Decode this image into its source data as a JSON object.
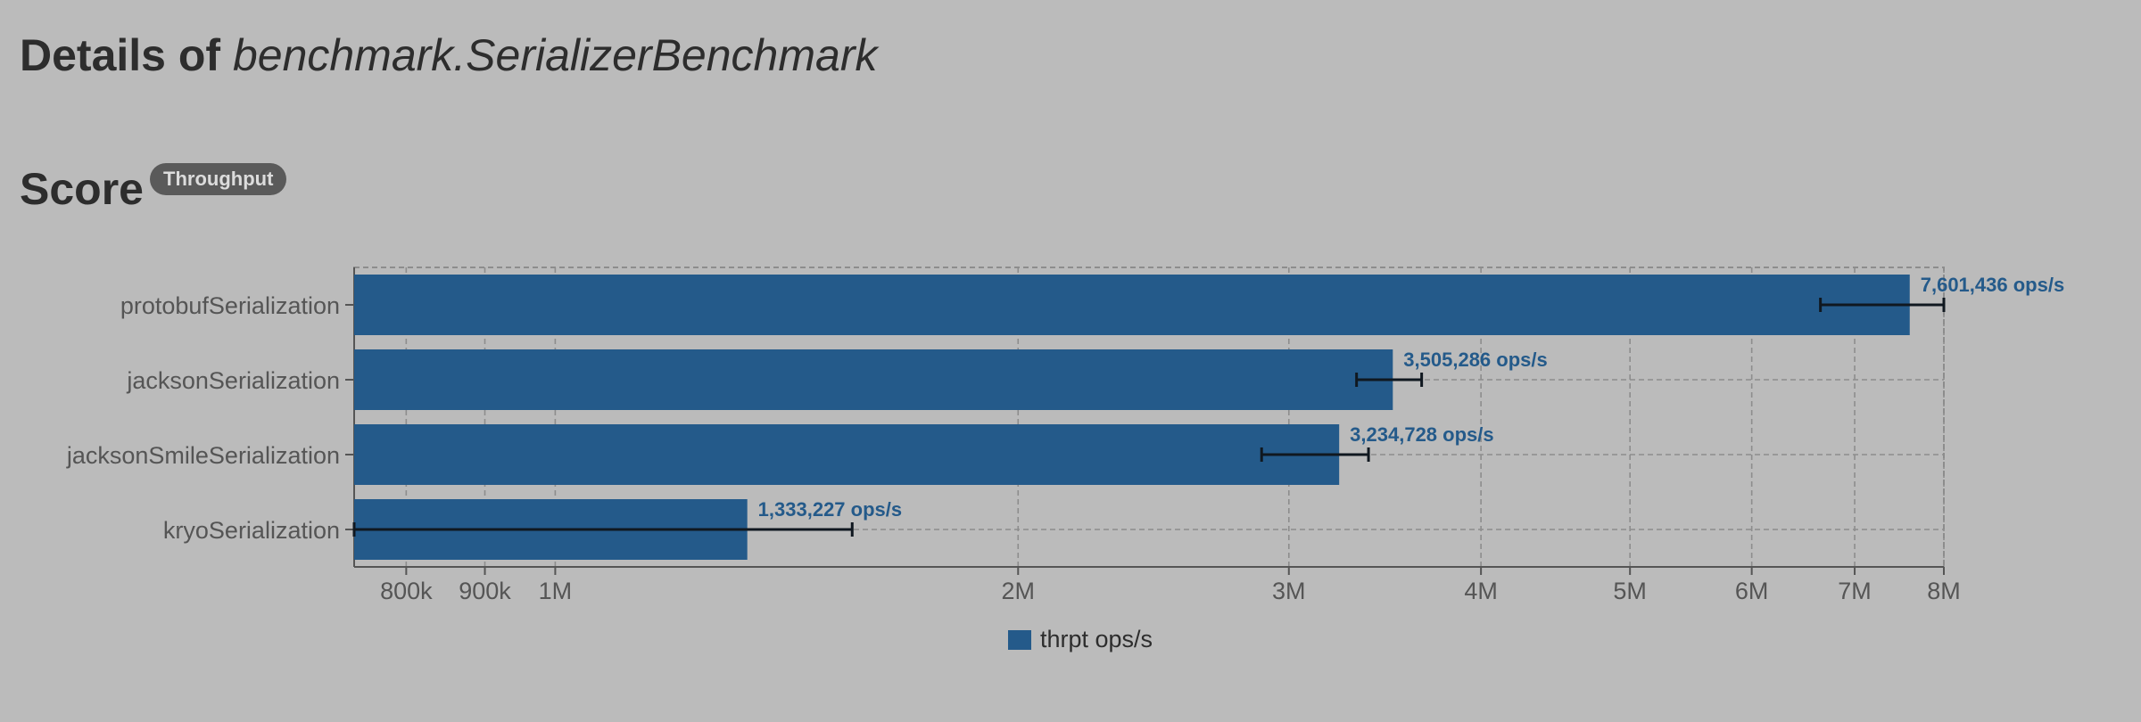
{
  "page": {
    "title_prefix": "Details of ",
    "title_subject": "benchmark.SerializerBenchmark"
  },
  "score": {
    "heading": "Score",
    "badge": "Throughput"
  },
  "chart_data": {
    "type": "bar",
    "orientation": "horizontal",
    "scale": "log",
    "xlim": [
      740000,
      8000000
    ],
    "grid": true,
    "legend_position": "bottom",
    "bar_color": "#245a8a",
    "value_label_color": "#245a8a",
    "value_unit": "ops/s",
    "categories": [
      "protobufSerialization",
      "jacksonSerialization",
      "jacksonSmileSerialization",
      "kryoSerialization"
    ],
    "series": [
      {
        "name": "thrpt ops/s",
        "values": [
          7601436,
          3505286,
          3234728,
          1333227
        ],
        "error_low": [
          6650000,
          3320000,
          2880000,
          740000
        ],
        "error_high": [
          8000000,
          3660000,
          3380000,
          1560000
        ]
      }
    ],
    "value_labels": [
      "7,601,436 ops/s",
      "3,505,286 ops/s",
      "3,234,728 ops/s",
      "1,333,227 ops/s"
    ],
    "x_ticks": [
      {
        "value": 800000,
        "label": "800k"
      },
      {
        "value": 900000,
        "label": "900k"
      },
      {
        "value": 1000000,
        "label": "1M"
      },
      {
        "value": 2000000,
        "label": "2M"
      },
      {
        "value": 3000000,
        "label": "3M"
      },
      {
        "value": 4000000,
        "label": "4M"
      },
      {
        "value": 5000000,
        "label": "5M"
      },
      {
        "value": 6000000,
        "label": "6M"
      },
      {
        "value": 7000000,
        "label": "7M"
      },
      {
        "value": 8000000,
        "label": "8M"
      }
    ]
  }
}
